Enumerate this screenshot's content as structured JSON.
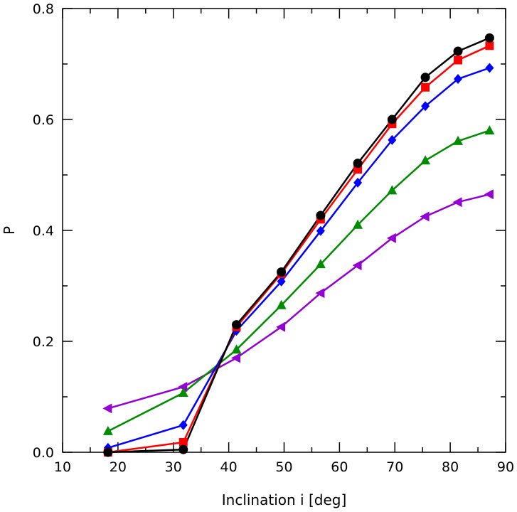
{
  "chart_data": {
    "type": "line",
    "title": "",
    "xlabel": "Inclination i [deg]",
    "ylabel": "P",
    "xlim": [
      10,
      90
    ],
    "ylim": [
      0.0,
      0.8
    ],
    "xticks": [
      10,
      20,
      30,
      40,
      50,
      60,
      70,
      80,
      90
    ],
    "xtick_labels": [
      "10",
      "20",
      "30",
      "40",
      "50",
      "60",
      "70",
      "80",
      "90"
    ],
    "yticks": [
      0.0,
      0.2,
      0.4,
      0.6,
      0.8
    ],
    "ytick_labels": [
      "0.0",
      "0.2",
      "0.4",
      "0.6",
      "0.8"
    ],
    "grid": false,
    "x": [
      18.2,
      31.8,
      41.4,
      49.5,
      56.6,
      63.3,
      69.5,
      75.5,
      81.4,
      87.1
    ],
    "series": [
      {
        "name": "circle",
        "marker": "circle",
        "color": "#000000",
        "values": [
          0.0,
          0.005,
          0.23,
          0.325,
          0.427,
          0.521,
          0.6,
          0.676,
          0.723,
          0.747
        ]
      },
      {
        "name": "square",
        "marker": "square",
        "color": "#ff0000",
        "values": [
          0.0,
          0.018,
          0.226,
          0.322,
          0.42,
          0.51,
          0.592,
          0.658,
          0.707,
          0.733
        ]
      },
      {
        "name": "diamond",
        "marker": "diamond",
        "color": "#0000ff",
        "values": [
          0.008,
          0.049,
          0.219,
          0.308,
          0.399,
          0.486,
          0.563,
          0.624,
          0.673,
          0.693
        ]
      },
      {
        "name": "triangle-up",
        "marker": "triangle-up",
        "color": "#008c00",
        "values": [
          0.038,
          0.107,
          0.185,
          0.265,
          0.339,
          0.41,
          0.472,
          0.526,
          0.561,
          0.58
        ]
      },
      {
        "name": "triangle-left",
        "marker": "triangle-left",
        "color": "#9400d3",
        "values": [
          0.079,
          0.118,
          0.17,
          0.226,
          0.287,
          0.337,
          0.386,
          0.425,
          0.451,
          0.465
        ]
      }
    ]
  }
}
